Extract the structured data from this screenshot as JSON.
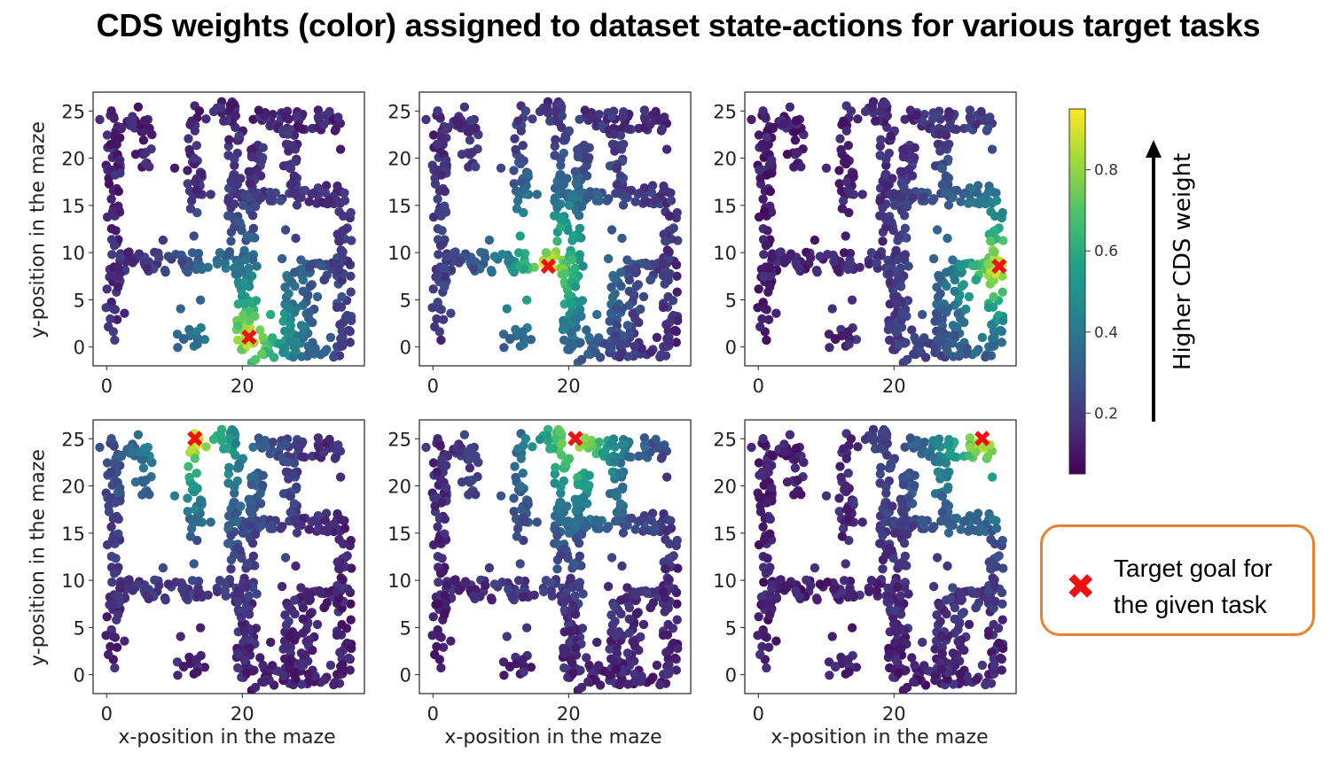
{
  "title": "CDS weights (color) assigned to dataset state-actions for various target tasks",
  "chart_data": {
    "type": "scatter",
    "colormap": "viridis",
    "axis_labels": {
      "x": "x-position in the maze",
      "y": "y-position in the maze"
    },
    "xticks": [
      "0",
      "20"
    ],
    "yticks": [
      "0",
      "5",
      "10",
      "15",
      "20",
      "25"
    ],
    "xlim": [
      -2,
      38
    ],
    "ylim": [
      -2,
      27
    ],
    "panels": [
      {
        "row": 0,
        "col": 0,
        "goal": [
          21,
          1
        ],
        "goal_marker": "✖"
      },
      {
        "row": 0,
        "col": 1,
        "goal": [
          17,
          8.5
        ],
        "goal_marker": "✖"
      },
      {
        "row": 0,
        "col": 2,
        "goal": [
          35.5,
          8.5
        ],
        "goal_marker": "✖"
      },
      {
        "row": 1,
        "col": 0,
        "goal": [
          13,
          25
        ],
        "goal_marker": "✖"
      },
      {
        "row": 1,
        "col": 1,
        "goal": [
          21,
          25
        ],
        "goal_marker": "✖"
      },
      {
        "row": 1,
        "col": 2,
        "goal": [
          33,
          25
        ],
        "goal_marker": "✖"
      }
    ],
    "colorbar": {
      "ticks": [
        "0.2",
        "0.4",
        "0.6",
        "0.8"
      ],
      "range": [
        0.05,
        0.95
      ],
      "label": "Higher CDS weight"
    }
  },
  "legend": {
    "marker": "✖",
    "text_line1": "Target goal for",
    "text_line2": "the given task"
  }
}
